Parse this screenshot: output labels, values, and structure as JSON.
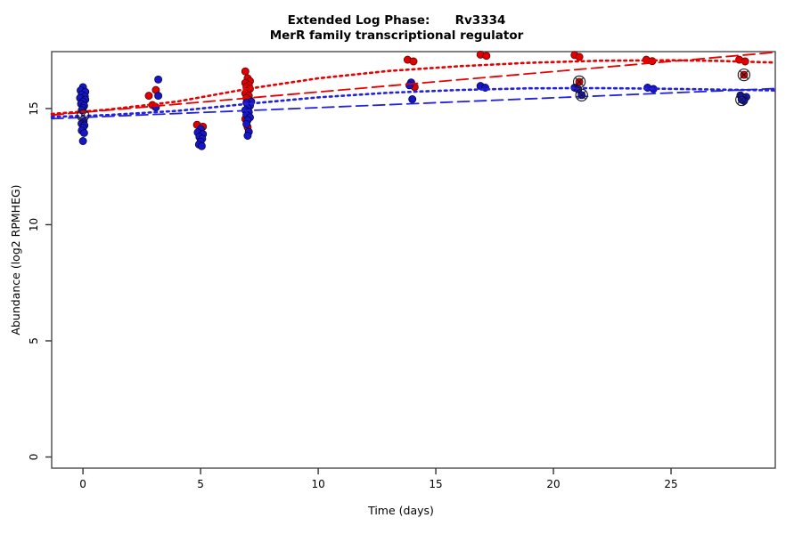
{
  "title": {
    "line1": "Extended Log Phase:      Rv3334",
    "line2": "MerR family transcriptional regulator"
  },
  "axes": {
    "x": {
      "label": "Time  (days)",
      "ticks": [
        0,
        5,
        10,
        15,
        20,
        25
      ],
      "range": [
        -1.33,
        29.43
      ]
    },
    "y": {
      "label": "Abundance  (log2 RPMHEG)",
      "ticks": [
        0,
        5,
        10,
        15
      ],
      "range": [
        -0.48,
        17.45
      ]
    }
  },
  "colors": {
    "red": "#e10000",
    "blue": "#1616c8",
    "red_line": "#e60000",
    "blue_line": "#2222dd",
    "box": "#606060",
    "tick": "#333333",
    "marker_ring": "#1a1a1a"
  },
  "chart_data": {
    "type": "scatter",
    "xlabel": "Time  (days)",
    "ylabel": "Abundance  (log2 RPMHEG)",
    "xlim": [
      -1.33,
      29.43
    ],
    "ylim": [
      -0.48,
      17.45
    ],
    "grid": false,
    "legend": "none",
    "series": [
      {
        "name": "red-series",
        "color_key": "red",
        "points": [
          [
            3.1,
            15.8
          ],
          [
            2.8,
            15.55
          ],
          [
            2.95,
            15.15
          ],
          [
            4.85,
            14.3
          ],
          [
            5.1,
            14.22
          ],
          [
            6.9,
            16.6
          ],
          [
            7.0,
            16.3
          ],
          [
            7.1,
            16.18
          ],
          [
            6.9,
            16.1
          ],
          [
            7.05,
            16.0
          ],
          [
            6.95,
            15.92
          ],
          [
            7.1,
            15.85
          ],
          [
            7.0,
            15.75
          ],
          [
            6.9,
            15.65
          ],
          [
            7.05,
            15.55
          ],
          [
            6.95,
            15.45
          ],
          [
            7.1,
            15.35
          ],
          [
            7.0,
            15.2
          ],
          [
            6.9,
            14.55
          ],
          [
            7.0,
            14.2
          ],
          [
            13.8,
            17.1
          ],
          [
            14.05,
            17.03
          ],
          [
            14.1,
            15.92
          ],
          [
            16.9,
            17.32
          ],
          [
            17.15,
            17.27
          ],
          [
            20.9,
            17.3
          ],
          [
            21.1,
            17.22
          ],
          [
            23.95,
            17.1
          ],
          [
            24.2,
            17.04
          ],
          [
            27.9,
            17.1
          ],
          [
            28.15,
            17.03
          ]
        ]
      },
      {
        "name": "blue-series",
        "color_key": "blue",
        "points": [
          [
            0.0,
            15.92
          ],
          [
            -0.1,
            15.78
          ],
          [
            0.1,
            15.72
          ],
          [
            -0.05,
            15.6
          ],
          [
            0.08,
            15.52
          ],
          [
            -0.12,
            15.45
          ],
          [
            0.1,
            15.38
          ],
          [
            0.0,
            15.3
          ],
          [
            -0.08,
            15.2
          ],
          [
            0.05,
            15.12
          ],
          [
            0.0,
            15.02
          ],
          [
            -0.05,
            14.93
          ],
          [
            0.03,
            14.45
          ],
          [
            -0.06,
            14.35
          ],
          [
            0.06,
            14.27
          ],
          [
            0.0,
            14.17
          ],
          [
            -0.05,
            14.05
          ],
          [
            0.05,
            13.95
          ],
          [
            0.0,
            13.6
          ],
          [
            3.2,
            16.25
          ],
          [
            3.2,
            15.55
          ],
          [
            3.1,
            15.05
          ],
          [
            5.0,
            14.12
          ],
          [
            4.88,
            13.97
          ],
          [
            5.1,
            13.9
          ],
          [
            4.95,
            13.78
          ],
          [
            5.07,
            13.7
          ],
          [
            5.0,
            13.57
          ],
          [
            4.93,
            13.45
          ],
          [
            5.05,
            13.38
          ],
          [
            7.15,
            15.3
          ],
          [
            6.95,
            15.25
          ],
          [
            7.1,
            15.12
          ],
          [
            7.0,
            15.02
          ],
          [
            6.9,
            14.93
          ],
          [
            7.05,
            14.85
          ],
          [
            6.95,
            14.73
          ],
          [
            7.1,
            14.62
          ],
          [
            7.0,
            14.5
          ],
          [
            6.95,
            14.33
          ],
          [
            7.05,
            14.0
          ],
          [
            7.0,
            13.83
          ],
          [
            13.95,
            16.12
          ],
          [
            13.88,
            16.0
          ],
          [
            14.0,
            15.4
          ],
          [
            16.9,
            15.97
          ],
          [
            17.1,
            15.9
          ],
          [
            20.9,
            15.9
          ],
          [
            21.05,
            15.83
          ],
          [
            24.0,
            15.9
          ],
          [
            24.25,
            15.84
          ],
          [
            27.95,
            15.57
          ],
          [
            28.2,
            15.5
          ],
          [
            28.1,
            15.33
          ]
        ]
      }
    ],
    "outlier_markers": [
      {
        "x": 0.0,
        "y": 14.7,
        "fill": "open"
      },
      {
        "x": 21.1,
        "y": 16.15,
        "fill": "red"
      },
      {
        "x": 21.2,
        "y": 15.58,
        "fill": "blue"
      },
      {
        "x": 28.1,
        "y": 16.45,
        "fill": "red"
      },
      {
        "x": 28.0,
        "y": 15.38,
        "fill": "blue"
      }
    ],
    "trend_lines": [
      {
        "name": "red-dotted-fit",
        "color_key": "red_line",
        "style": "dotted",
        "points": [
          [
            -1.33,
            14.77
          ],
          [
            1,
            14.95
          ],
          [
            4,
            15.3
          ],
          [
            7,
            15.85
          ],
          [
            10,
            16.3
          ],
          [
            13,
            16.62
          ],
          [
            16,
            16.82
          ],
          [
            19,
            16.97
          ],
          [
            22,
            17.06
          ],
          [
            25,
            17.08
          ],
          [
            27,
            17.05
          ],
          [
            29.43,
            16.98
          ]
        ]
      },
      {
        "name": "red-dashed-fit",
        "color_key": "red_line",
        "style": "dashed",
        "points": [
          [
            -1.33,
            14.72
          ],
          [
            29.43,
            17.42
          ]
        ]
      },
      {
        "name": "blue-dotted-fit",
        "color_key": "blue_line",
        "style": "dotted",
        "points": [
          [
            -1.33,
            14.64
          ],
          [
            1,
            14.72
          ],
          [
            4,
            14.9
          ],
          [
            7,
            15.2
          ],
          [
            10,
            15.48
          ],
          [
            13,
            15.68
          ],
          [
            16,
            15.8
          ],
          [
            19,
            15.87
          ],
          [
            22,
            15.88
          ],
          [
            25,
            15.85
          ],
          [
            29.43,
            15.78
          ]
        ]
      },
      {
        "name": "blue-dashed-fit",
        "color_key": "blue_line",
        "style": "dashed",
        "points": [
          [
            -1.33,
            14.56
          ],
          [
            29.43,
            15.86
          ]
        ]
      }
    ]
  }
}
